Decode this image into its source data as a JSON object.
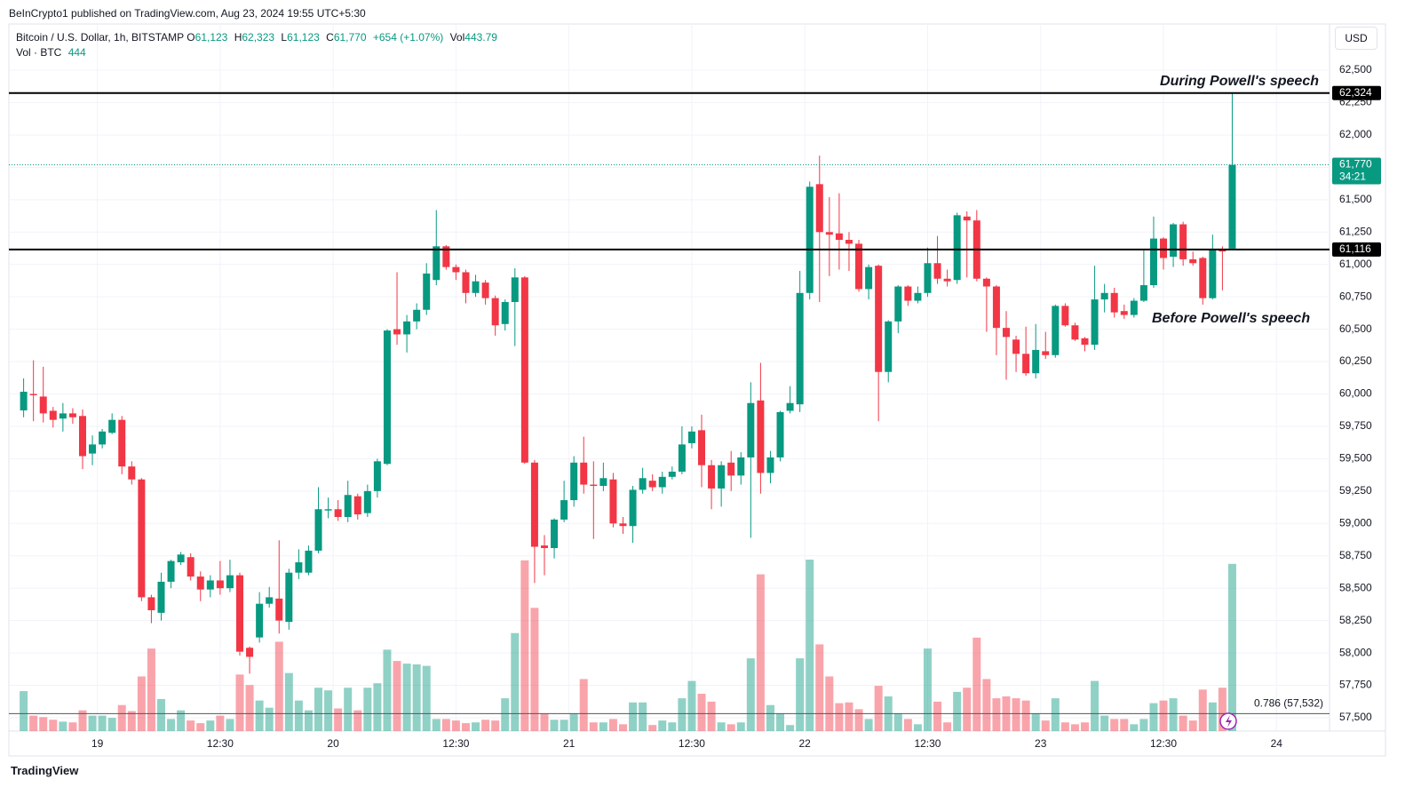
{
  "header": "BeInCrypto1 published on TradingView.com, Aug 23, 2024 19:55 UTC+5:30",
  "footer": "TradingView",
  "chart_data": {
    "type": "candlestick",
    "legend": {
      "symbol": "Bitcoin / U.S. Dollar, 1h, BITSTAMP",
      "items": [
        {
          "key": "O",
          "value": "61,123"
        },
        {
          "key": "H",
          "value": "62,323"
        },
        {
          "key": "L",
          "value": "61,123"
        },
        {
          "key": "C",
          "value": "61,770"
        }
      ],
      "change": "+654 (+1.07%)",
      "vol_key": "Vol",
      "vol_value": "443.79",
      "vol_line_key": "Vol · BTC",
      "vol_line_value": "444"
    },
    "currency": "USD",
    "up_color": "#089981",
    "down_color": "#f23645",
    "grid": true,
    "xlim": [
      -9,
      125.4
    ],
    "xticks": [
      {
        "value": 0,
        "label": "19"
      },
      {
        "value": 12.5,
        "label": "12:30"
      },
      {
        "value": 24,
        "label": "20"
      },
      {
        "value": 36.5,
        "label": "12:30"
      },
      {
        "value": 48,
        "label": "21"
      },
      {
        "value": 60.5,
        "label": "12:30"
      },
      {
        "value": 72,
        "label": "22"
      },
      {
        "value": 84.5,
        "label": "12:30"
      },
      {
        "value": 96,
        "label": "23"
      },
      {
        "value": 108.5,
        "label": "12:30"
      },
      {
        "value": 120,
        "label": "24"
      }
    ],
    "ylim": [
      57397,
      62857
    ],
    "yticks": [
      {
        "value": 57500,
        "label": "57,500"
      },
      {
        "value": 57750,
        "label": "57,750"
      },
      {
        "value": 58000,
        "label": "58,000"
      },
      {
        "value": 58250,
        "label": "58,250"
      },
      {
        "value": 58500,
        "label": "58,500"
      },
      {
        "value": 58750,
        "label": "58,750"
      },
      {
        "value": 59000,
        "label": "59,000"
      },
      {
        "value": 59250,
        "label": "59,250"
      },
      {
        "value": 59500,
        "label": "59,500"
      },
      {
        "value": 59750,
        "label": "59,750"
      },
      {
        "value": 60000,
        "label": "60,000"
      },
      {
        "value": 60250,
        "label": "60,250"
      },
      {
        "value": 60500,
        "label": "60,500"
      },
      {
        "value": 60750,
        "label": "60,750"
      },
      {
        "value": 61000,
        "label": "61,000"
      },
      {
        "value": 61250,
        "label": "61,250"
      },
      {
        "value": 61500,
        "label": "61,500"
      },
      {
        "value": 61750,
        "label": "61,750"
      },
      {
        "value": 62000,
        "label": "62,000"
      },
      {
        "value": 62250,
        "label": "62,250"
      },
      {
        "value": 62500,
        "label": "62,500"
      }
    ],
    "x": [
      -7.5,
      -6.5,
      -5.5,
      -4.5,
      -3.5,
      -2.5,
      -1.5,
      -0.5,
      0.5,
      1.5,
      2.5,
      3.5,
      4.5,
      5.5,
      6.5,
      7.5,
      8.5,
      9.5,
      10.5,
      11.5,
      12.5,
      13.5,
      14.5,
      15.5,
      16.5,
      17.5,
      18.5,
      19.5,
      20.5,
      21.5,
      22.5,
      23.5,
      24.5,
      25.5,
      26.5,
      27.5,
      28.5,
      29.5,
      30.5,
      31.5,
      32.5,
      33.5,
      34.5,
      35.5,
      36.5,
      37.5,
      38.5,
      39.5,
      40.5,
      41.5,
      42.5,
      43.5,
      44.5,
      45.5,
      46.5,
      47.5,
      48.5,
      49.5,
      50.5,
      51.5,
      52.5,
      53.5,
      54.5,
      55.5,
      56.5,
      57.5,
      58.5,
      59.5,
      60.5,
      61.5,
      62.5,
      63.5,
      64.5,
      65.5,
      66.5,
      67.5,
      68.5,
      69.5,
      70.5,
      71.5,
      72.5,
      73.5,
      74.5,
      75.5,
      76.5,
      77.5,
      78.5,
      79.5,
      80.5,
      81.5,
      82.5,
      83.5,
      84.5,
      85.5,
      86.5,
      87.5,
      88.5,
      89.5,
      90.5,
      91.5,
      92.5,
      93.5,
      94.5,
      95.5,
      96.5,
      97.5,
      98.5,
      99.5,
      100.5,
      101.5,
      102.5,
      103.5,
      104.5,
      105.5,
      106.5,
      107.5,
      108.5,
      109.5,
      110.5,
      111.5,
      112.5,
      113.5,
      114.5,
      115.5
    ],
    "open": [
      59873,
      60000,
      59980,
      59870,
      59810,
      59850,
      59830,
      59540,
      59610,
      59700,
      59800,
      59440,
      59340,
      58430,
      58310,
      58550,
      58700,
      58740,
      58590,
      58490,
      58560,
      58500,
      58600,
      58040,
      58120,
      58380,
      58420,
      58240,
      58620,
      58620,
      58790,
      59100,
      59110,
      59050,
      59210,
      59080,
      59250,
      59460,
      60500,
      60460,
      60560,
      60650,
      60880,
      61140,
      60980,
      60940,
      60780,
      60860,
      60740,
      60540,
      60710,
      60900,
      59470,
      58830,
      58810,
      59030,
      59180,
      59470,
      59300,
      59290,
      59340,
      59000,
      58980,
      59260,
      59330,
      59280,
      59360,
      59400,
      59620,
      59720,
      59450,
      59270,
      59470,
      59370,
      59510,
      59950,
      59390,
      59510,
      59870,
      59920,
      60780,
      61620,
      61250,
      61240,
      61190,
      61160,
      60810,
      60990,
      60170,
      60560,
      60830,
      60720,
      60780,
      61010,
      60890,
      60880,
      61370,
      61340,
      60890,
      60830,
      60510,
      60420,
      60310,
      60160,
      60330,
      60300,
      60680,
      60530,
      60430,
      60380,
      60730,
      60780,
      60640,
      60610,
      60720,
      60840,
      61200,
      61060,
      61310,
      61040,
      61050,
      60740,
      61120,
      61123
    ],
    "high": [
      60120,
      60260,
      60210,
      59900,
      59930,
      59890,
      59880,
      59680,
      59730,
      59850,
      59830,
      59480,
      59350,
      58450,
      58620,
      58720,
      58780,
      58770,
      58630,
      58600,
      58710,
      58720,
      58620,
      58050,
      58470,
      58510,
      58870,
      58650,
      58800,
      58830,
      59280,
      59200,
      59180,
      59330,
      59230,
      59300,
      59500,
      60500,
      60940,
      60610,
      60700,
      61010,
      61420,
      61150,
      61000,
      60960,
      60920,
      60880,
      60760,
      60730,
      60970,
      60910,
      59490,
      58910,
      59040,
      59330,
      59520,
      59670,
      59480,
      59470,
      59390,
      59050,
      59290,
      59430,
      59380,
      59400,
      59440,
      59750,
      59750,
      59840,
      59490,
      59480,
      59560,
      59550,
      60090,
      60240,
      59560,
      59870,
      60060,
      60950,
      61640,
      61840,
      61520,
      61550,
      61250,
      61190,
      61000,
      61000,
      60570,
      60840,
      60840,
      60830,
      61130,
      61220,
      60960,
      61400,
      61410,
      61420,
      60900,
      60840,
      60640,
      60450,
      60520,
      60540,
      60480,
      60690,
      60700,
      60550,
      60440,
      60990,
      60850,
      60820,
      60690,
      60740,
      61120,
      61370,
      61210,
      61320,
      61330,
      61100,
      61060,
      61230,
      61140,
      62323
    ],
    "low": [
      59820,
      59790,
      59780,
      59740,
      59710,
      59770,
      59420,
      59450,
      59580,
      59690,
      59380,
      59300,
      58400,
      58230,
      58250,
      58500,
      58680,
      58560,
      58400,
      58430,
      58450,
      58470,
      57980,
      57840,
      58080,
      58350,
      58150,
      58180,
      58570,
      58600,
      58770,
      59040,
      59020,
      59010,
      59030,
      59050,
      59200,
      59450,
      60380,
      60320,
      60500,
      60610,
      60840,
      60960,
      60880,
      60700,
      60750,
      60690,
      60450,
      60490,
      60370,
      59460,
      58540,
      58600,
      58730,
      59010,
      59130,
      59230,
      58880,
      59250,
      58970,
      58920,
      58850,
      59230,
      59250,
      59230,
      59340,
      59380,
      59580,
      59280,
      59110,
      59130,
      59250,
      59300,
      58890,
      59230,
      59310,
      59480,
      59850,
      59860,
      60730,
      60710,
      60910,
      60960,
      60950,
      60790,
      60730,
      59790,
      60090,
      60470,
      60680,
      60700,
      60750,
      60850,
      60830,
      60850,
      60900,
      60870,
      60480,
      60300,
      60110,
      60170,
      60140,
      60120,
      60270,
      60280,
      60520,
      60410,
      60330,
      60340,
      60630,
      60590,
      60580,
      60590,
      60710,
      60820,
      60960,
      60980,
      60990,
      60990,
      60690,
      60730,
      60800,
      61123
    ],
    "close": [
      60017,
      59990,
      59850,
      59800,
      59850,
      59820,
      59520,
      59610,
      59710,
      59800,
      59440,
      59340,
      58430,
      58330,
      58550,
      58710,
      58760,
      58590,
      58490,
      58560,
      58500,
      58600,
      58010,
      57970,
      58380,
      58430,
      58250,
      58620,
      58700,
      58790,
      59110,
      59110,
      59050,
      59220,
      59070,
      59250,
      59480,
      60490,
      60460,
      60560,
      60650,
      60930,
      61140,
      60980,
      60940,
      60780,
      60870,
      60740,
      60530,
      60710,
      60900,
      59470,
      58820,
      58810,
      59030,
      59180,
      59470,
      59300,
      59290,
      59350,
      59000,
      58980,
      59260,
      59350,
      59280,
      59360,
      59400,
      59610,
      59710,
      59450,
      59270,
      59450,
      59370,
      59510,
      59930,
      59390,
      59510,
      59860,
      59930,
      60780,
      61600,
      61250,
      61230,
      61190,
      61160,
      60810,
      60980,
      60170,
      60560,
      60830,
      60720,
      60780,
      61010,
      60890,
      60870,
      61380,
      61340,
      60890,
      60830,
      60510,
      60440,
      60310,
      60160,
      60340,
      60300,
      60680,
      60530,
      60420,
      60380,
      60730,
      60780,
      60630,
      60610,
      60720,
      60840,
      61200,
      61050,
      61310,
      61040,
      61010,
      60740,
      61120,
      61100,
      61770
    ],
    "volume": [
      106,
      41,
      37,
      30,
      25,
      23,
      55,
      41,
      41,
      35,
      69,
      53,
      145,
      219,
      85,
      32,
      55,
      28,
      21,
      28,
      41,
      32,
      150,
      122,
      81,
      62,
      237,
      154,
      81,
      55,
      115,
      108,
      60,
      115,
      55,
      115,
      127,
      216,
      186,
      179,
      177,
      173,
      32,
      32,
      28,
      21,
      23,
      30,
      28,
      87,
      260,
      453,
      327,
      46,
      30,
      30,
      46,
      138,
      23,
      23,
      32,
      18,
      76,
      76,
      16,
      28,
      23,
      87,
      133,
      99,
      78,
      23,
      18,
      23,
      193,
      416,
      69,
      46,
      16,
      193,
      455,
      230,
      145,
      74,
      76,
      58,
      32,
      120,
      92,
      46,
      32,
      18,
      219,
      78,
      23,
      104,
      115,
      248,
      138,
      87,
      92,
      87,
      81,
      46,
      28,
      87,
      23,
      18,
      23,
      133,
      41,
      32,
      32,
      18,
      32,
      74,
      81,
      87,
      41,
      28,
      110,
      76,
      115,
      443.79
    ],
    "hlines": [
      {
        "value": 62324,
        "label": "62,324"
      },
      {
        "value": 61116,
        "label": "61,116"
      }
    ],
    "last_price": {
      "value": 61770,
      "label": "61,770",
      "countdown": "34:21"
    },
    "fib": {
      "value": 57532,
      "label": "0.786 (57,532)"
    },
    "annotations": [
      "During Powell's speech",
      "Before Powell's speech"
    ]
  }
}
